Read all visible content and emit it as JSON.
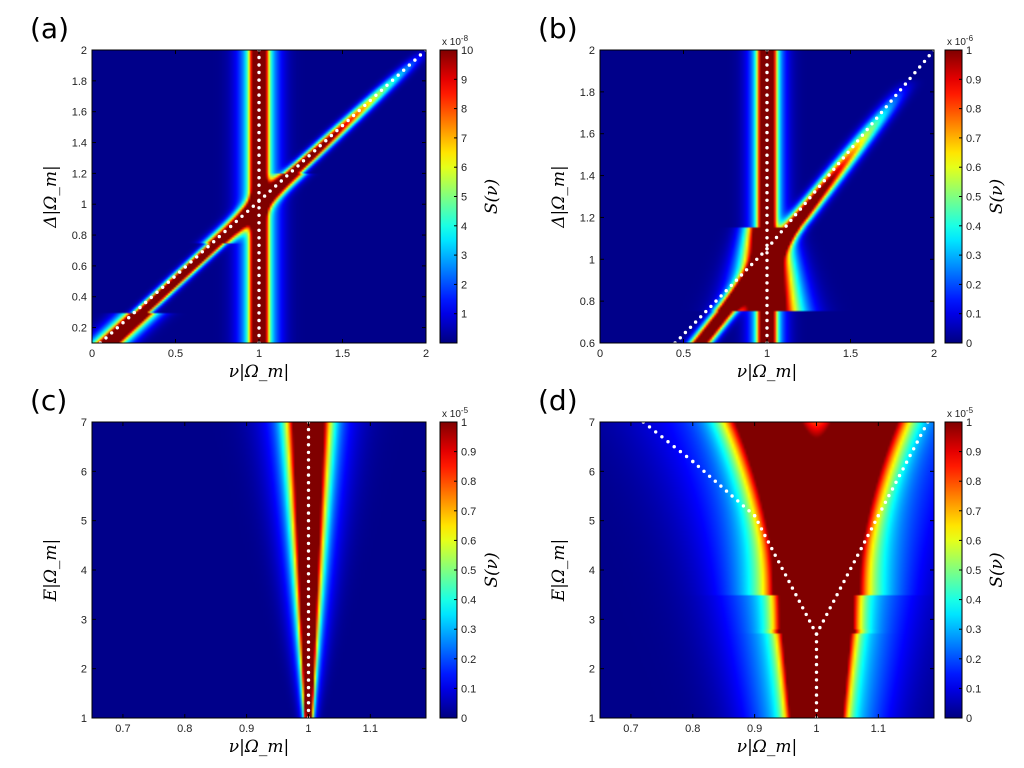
{
  "figure": {
    "description_labels": [
      "(a)",
      "(b)",
      "(c)",
      "(d)"
    ]
  },
  "chart_data": [
    {
      "type": "heatmap",
      "panel_label": "(a)",
      "xlabel": "ν|Ω_m|",
      "ylabel": "Δ|Ω_m|",
      "xlim": [
        0,
        2
      ],
      "ylim": [
        0.1,
        2
      ],
      "xticks": [
        0,
        0.5,
        1,
        1.5,
        2
      ],
      "xtick_labels": [
        "0",
        "0.5",
        "1",
        "1.5",
        "2"
      ],
      "yticks": [
        0.2,
        0.4,
        0.6,
        0.8,
        1,
        1.2,
        1.4,
        1.6,
        1.8,
        2
      ],
      "ytick_labels": [
        "0.2",
        "0.4",
        "0.6",
        "0.8",
        "1",
        "1.2",
        "1.4",
        "1.6",
        "1.8",
        "2"
      ],
      "colorbar": {
        "label": "S(ν)",
        "range": [
          0,
          10
        ],
        "ticks": [
          1,
          2,
          3,
          4,
          5,
          6,
          7,
          8,
          9,
          10
        ],
        "tick_labels": [
          "1",
          "2",
          "3",
          "4",
          "5",
          "6",
          "7",
          "8",
          "9",
          "10"
        ],
        "exponent": "x 10",
        "exponent_power": "-8"
      },
      "model": "crossing-diagonal",
      "series": [
        {
          "name": "vertical resonance",
          "points": [
            [
              1,
              0.1
            ],
            [
              1,
              2
            ]
          ]
        },
        {
          "name": "diagonal branch",
          "points": [
            [
              0.05,
              0.1
            ],
            [
              1,
              1.02
            ],
            [
              2,
              2
            ]
          ]
        }
      ]
    },
    {
      "type": "heatmap",
      "panel_label": "(b)",
      "xlabel": "ν|Ω_m|",
      "ylabel": "Δ|Ω_m|",
      "xlim": [
        0,
        2
      ],
      "ylim": [
        0.6,
        2
      ],
      "xticks": [
        0,
        0.5,
        1,
        1.5,
        2
      ],
      "xtick_labels": [
        "0",
        "0.5",
        "1",
        "1.5",
        "2"
      ],
      "yticks": [
        0.6,
        0.8,
        1,
        1.2,
        1.4,
        1.6,
        1.8,
        2
      ],
      "ytick_labels": [
        "0.6",
        "0.8",
        "1",
        "1.2",
        "1.4",
        "1.6",
        "1.8",
        "2"
      ],
      "colorbar": {
        "label": "S(ν)",
        "range": [
          0,
          1
        ],
        "ticks": [
          0,
          0.1,
          0.2,
          0.3,
          0.4,
          0.5,
          0.6,
          0.7,
          0.8,
          0.9,
          1
        ],
        "tick_labels": [
          "0",
          "0.1",
          "0.2",
          "0.3",
          "0.4",
          "0.5",
          "0.6",
          "0.7",
          "0.8",
          "0.9",
          "1"
        ],
        "exponent": "x 10",
        "exponent_power": "-6"
      },
      "model": "crossing-diagonal-wide",
      "series": [
        {
          "name": "vertical resonance",
          "points": [
            [
              1,
              0.6
            ],
            [
              1,
              2
            ]
          ]
        },
        {
          "name": "diagonal branch",
          "points": [
            [
              0.45,
              0.6
            ],
            [
              1,
              1.05
            ],
            [
              2,
              2
            ]
          ]
        }
      ]
    },
    {
      "type": "heatmap",
      "panel_label": "(c)",
      "xlabel": "ν|Ω_m|",
      "ylabel": "E|Ω_m|",
      "xlim": [
        0.65,
        1.19
      ],
      "ylim": [
        1,
        7
      ],
      "xticks": [
        0.7,
        0.8,
        0.9,
        1,
        1.1
      ],
      "xtick_labels": [
        "0.7",
        "0.8",
        "0.9",
        "1",
        "1.1"
      ],
      "yticks": [
        1,
        2,
        3,
        4,
        5,
        6,
        7
      ],
      "ytick_labels": [
        "1",
        "2",
        "3",
        "4",
        "5",
        "6",
        "7"
      ],
      "colorbar": {
        "label": "S(ν)",
        "range": [
          0,
          1
        ],
        "ticks": [
          0,
          0.1,
          0.2,
          0.3,
          0.4,
          0.5,
          0.6,
          0.7,
          0.8,
          0.9,
          1
        ],
        "tick_labels": [
          "0",
          "0.1",
          "0.2",
          "0.3",
          "0.4",
          "0.5",
          "0.6",
          "0.7",
          "0.8",
          "0.9",
          "1"
        ],
        "exponent": "x 10",
        "exponent_power": "-5"
      },
      "model": "narrow-vertical",
      "series": [
        {
          "name": "resonance",
          "points": [
            [
              1,
              1
            ],
            [
              1,
              7
            ]
          ]
        }
      ]
    },
    {
      "type": "heatmap",
      "panel_label": "(d)",
      "xlabel": "ν|Ω_m|",
      "ylabel": "E|Ω_m|",
      "xlim": [
        0.65,
        1.19
      ],
      "ylim": [
        1,
        7
      ],
      "xticks": [
        0.7,
        0.8,
        0.9,
        1,
        1.1
      ],
      "xtick_labels": [
        "0.7",
        "0.8",
        "0.9",
        "1",
        "1.1"
      ],
      "yticks": [
        1,
        2,
        3,
        4,
        5,
        6,
        7
      ],
      "ytick_labels": [
        "1",
        "2",
        "3",
        "4",
        "5",
        "6",
        "7"
      ],
      "colorbar": {
        "label": "S(ν)",
        "range": [
          0,
          1
        ],
        "ticks": [
          0,
          0.1,
          0.2,
          0.3,
          0.4,
          0.5,
          0.6,
          0.7,
          0.8,
          0.9,
          1
        ],
        "tick_labels": [
          "0",
          "0.1",
          "0.2",
          "0.3",
          "0.4",
          "0.5",
          "0.6",
          "0.7",
          "0.8",
          "0.9",
          "1"
        ],
        "exponent": "x 10",
        "exponent_power": "-5"
      },
      "model": "v-split",
      "series": [
        {
          "name": "lower branch",
          "points": [
            [
              0.72,
              7
            ],
            [
              0.8,
              6.2
            ],
            [
              0.9,
              5.1
            ],
            [
              1,
              2.7
            ],
            [
              1,
              1
            ]
          ]
        },
        {
          "name": "upper branch",
          "points": [
            [
              1,
              2.7
            ],
            [
              1.1,
              5.1
            ],
            [
              1.18,
              7
            ]
          ]
        }
      ]
    }
  ]
}
